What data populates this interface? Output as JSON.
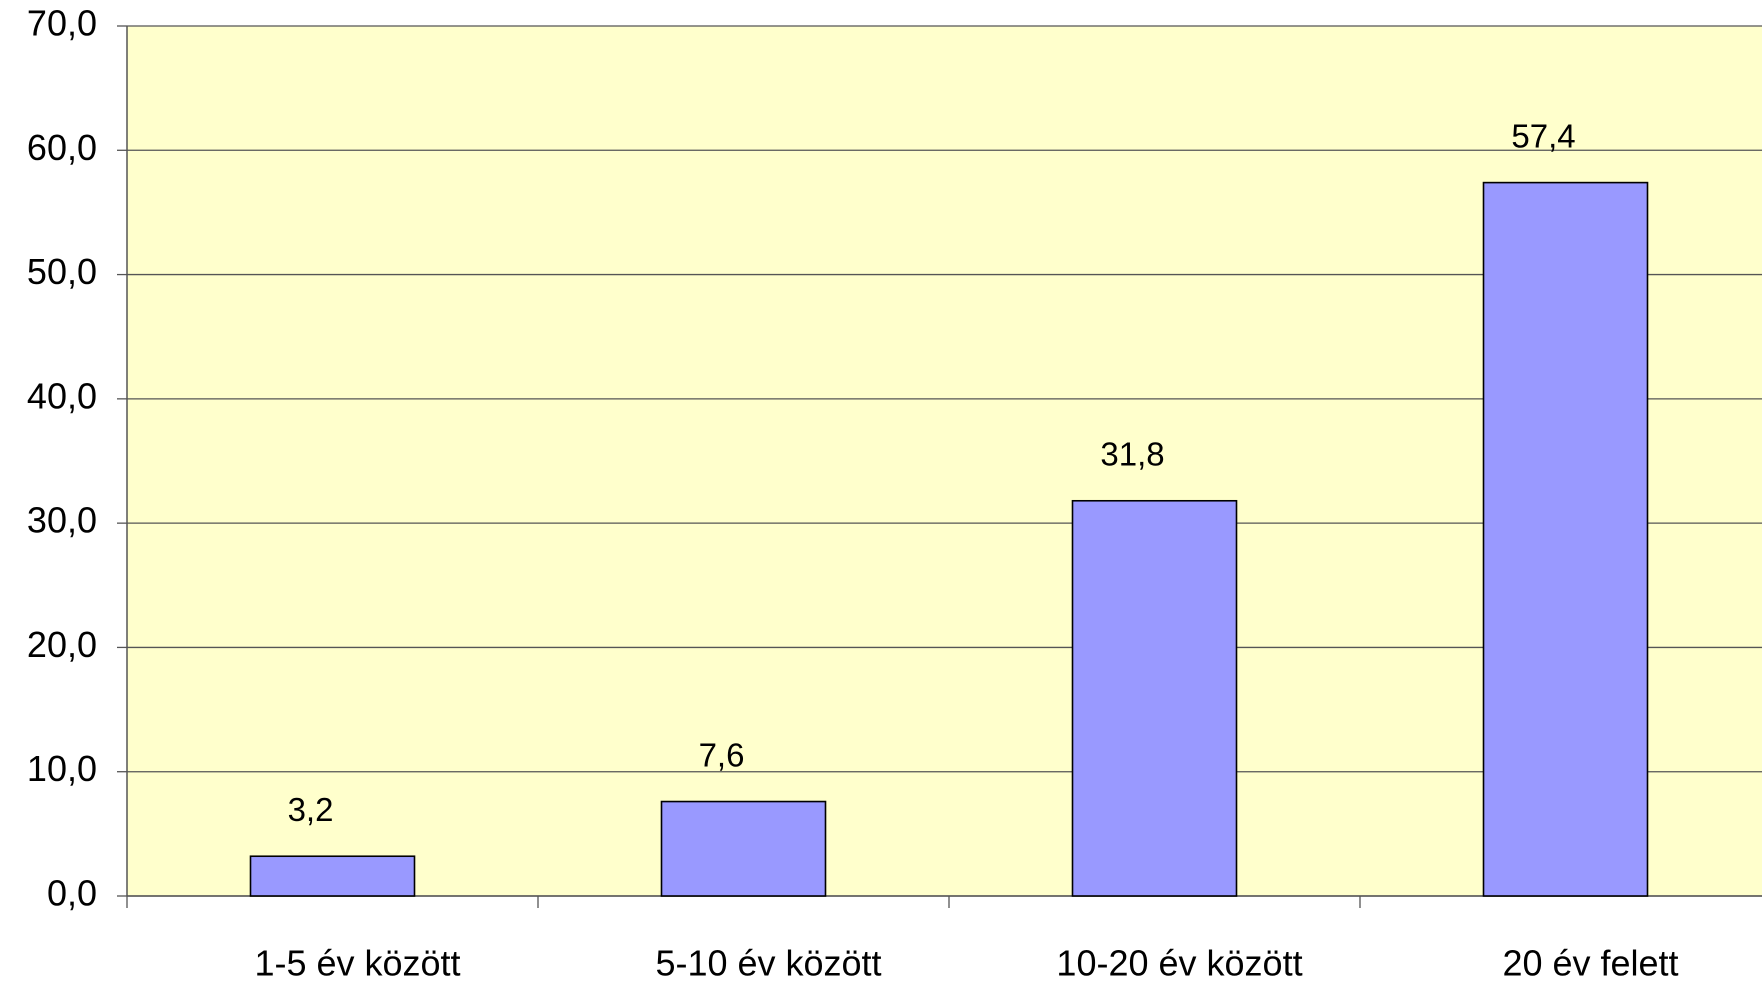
{
  "chart_data": {
    "type": "bar",
    "categories": [
      "1-5 év között",
      "5-10 év között",
      "10-20 év között",
      "20 év felett"
    ],
    "values": [
      3.2,
      7.6,
      31.8,
      57.4
    ],
    "value_labels": [
      "3,2",
      "7,6",
      "31,8",
      "57,4"
    ],
    "color": "#9999ff",
    "background": "#ffffcc",
    "ylim": [
      0,
      70
    ],
    "yticks": [
      {
        "value": 0,
        "label": "0,0"
      },
      {
        "value": 10,
        "label": "10,0"
      },
      {
        "value": 20,
        "label": "20,0"
      },
      {
        "value": 30,
        "label": "30,0"
      },
      {
        "value": 40,
        "label": "40,0"
      },
      {
        "value": 50,
        "label": "50,0"
      },
      {
        "value": 60,
        "label": "60,0"
      },
      {
        "value": 70,
        "label": "70,0"
      }
    ],
    "grid": true
  }
}
